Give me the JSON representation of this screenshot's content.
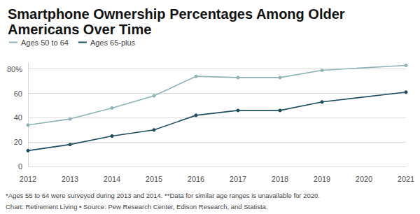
{
  "chart_data": {
    "type": "line",
    "title": "Smartphone Ownership Percentages Among Older Americans Over Time",
    "x": [
      2012,
      2013,
      2014,
      2015,
      2016,
      2017,
      2018,
      2019,
      2021
    ],
    "series": [
      {
        "name": "Ages 50 to 64",
        "color": "#8db3b5",
        "values": [
          34,
          39,
          48,
          58,
          74,
          73,
          73,
          79,
          83
        ]
      },
      {
        "name": "Ages 65-plus",
        "color": "#1d4e5e",
        "values": [
          13,
          18,
          25,
          30,
          42,
          46,
          46,
          53,
          61
        ]
      }
    ],
    "xlim": [
      2012,
      2021
    ],
    "xticks": [
      2012,
      2013,
      2014,
      2015,
      2016,
      2017,
      2018,
      2019,
      2020,
      2021
    ],
    "ylim": [
      0,
      85
    ],
    "yticks": [
      0,
      20,
      40,
      60,
      {
        "value": 80,
        "label": "80%"
      }
    ],
    "grid": true,
    "legend": "top-left",
    "marker": "circle",
    "annotations": [
      "*Ages 55 to 64 were surveyed during 2013 and 2014.",
      "**Data for similar age ranges is unavailable for 2020."
    ],
    "source": "Chart: Retirement Living • Source: Pew Research Center, Edison Research, and Statista."
  }
}
